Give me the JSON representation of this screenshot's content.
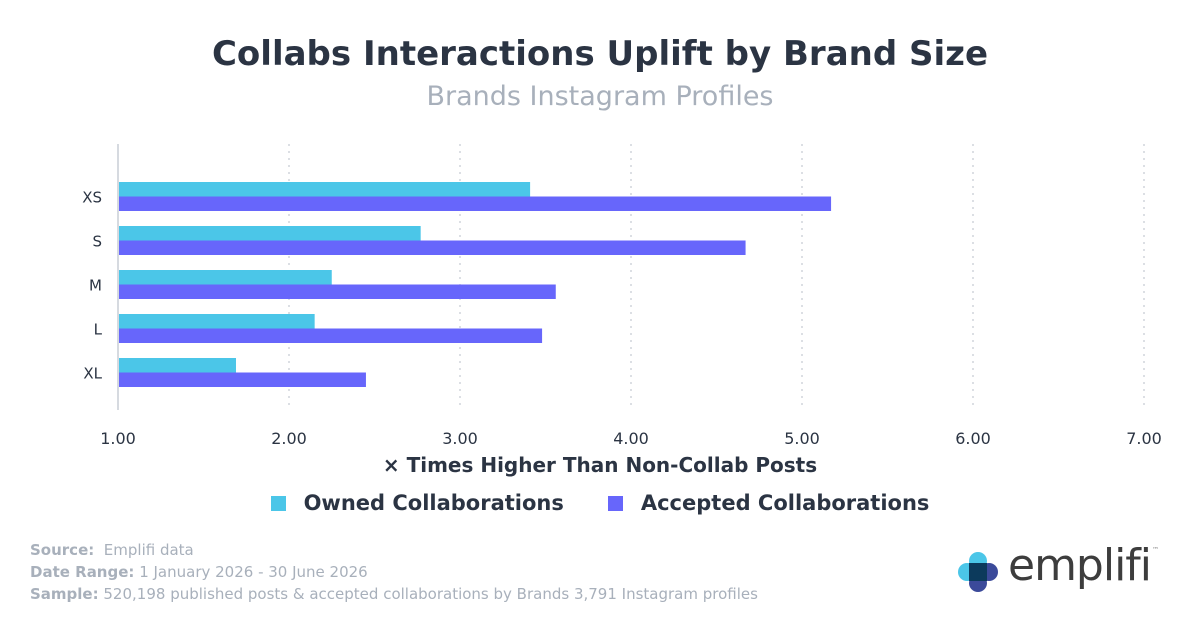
{
  "title": "Collabs Interactions Uplift by Brand Size",
  "subtitle": "Brands Instagram Profiles",
  "chart_data": {
    "type": "bar",
    "orientation": "horizontal",
    "categories": [
      "XS",
      "S",
      "M",
      "L",
      "XL"
    ],
    "series": [
      {
        "name": "Owned Collaborations",
        "color": "#4bc6e8",
        "values": [
          3.41,
          2.77,
          2.25,
          2.15,
          1.69
        ]
      },
      {
        "name": "Accepted Collaborations",
        "color": "#6766fb",
        "values": [
          5.17,
          4.67,
          3.56,
          3.48,
          2.45
        ]
      }
    ],
    "xlabel": "× Times Higher Than Non-Collab Posts",
    "ylabel": "",
    "xlim": [
      1.0,
      7.0
    ],
    "xticks": [
      "1.00",
      "2.00",
      "3.00",
      "4.00",
      "5.00",
      "6.00",
      "7.00"
    ],
    "grid": true,
    "legend_position": "bottom"
  },
  "footer": {
    "source_label": "Source:",
    "source_value": "Emplifi data",
    "date_label": "Date Range:",
    "date_value": "1 January 2026 - 30 June 2026",
    "sample_label": "Sample:",
    "sample_value": "520,198 published posts & accepted collaborations by Brands 3,791 Instagram profiles"
  },
  "logo": {
    "text": "emplifi",
    "trademark": "™"
  }
}
